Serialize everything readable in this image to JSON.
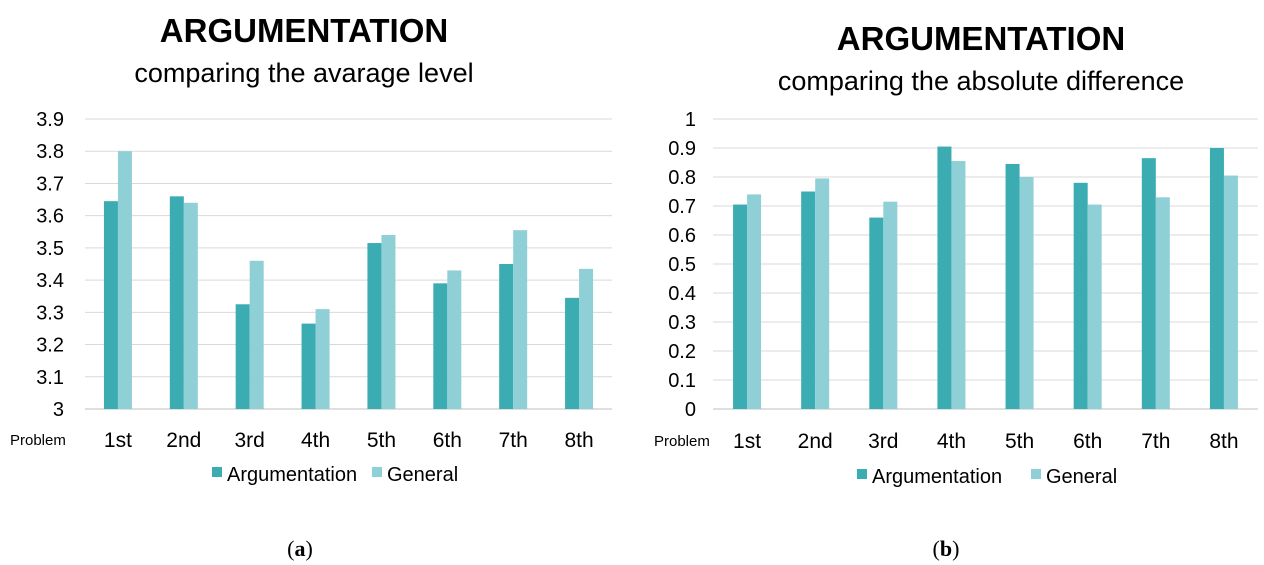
{
  "colors": {
    "argumentation": "#3aacb2",
    "general": "#8fd0d6"
  },
  "charts": [
    {
      "panel_label": "a",
      "category_prefix": "Problem",
      "chart_data": {
        "type": "bar",
        "title": "ARGUMENTATION",
        "subtitle": "comparing the avarage level",
        "categories": [
          "1st",
          "2nd",
          "3rd",
          "4th",
          "5th",
          "6th",
          "7th",
          "8th"
        ],
        "series": [
          {
            "name": "Argumentation",
            "values": [
              3.645,
              3.66,
              3.325,
              3.265,
              3.515,
              3.39,
              3.45,
              3.345
            ]
          },
          {
            "name": "General",
            "values": [
              3.8,
              3.64,
              3.46,
              3.31,
              3.54,
              3.43,
              3.555,
              3.435
            ]
          }
        ],
        "ylim": [
          3,
          3.9
        ],
        "yticks": [
          "3",
          "3.1",
          "3.2",
          "3.3",
          "3.4",
          "3.5",
          "3.6",
          "3.7",
          "3.8",
          "3.9"
        ],
        "grid": true,
        "legend_position": "bottom"
      }
    },
    {
      "panel_label": "b",
      "category_prefix": "Problem",
      "chart_data": {
        "type": "bar",
        "title": "ARGUMENTATION",
        "subtitle": "comparing the absolute difference",
        "categories": [
          "1st",
          "2nd",
          "3rd",
          "4th",
          "5th",
          "6th",
          "7th",
          "8th"
        ],
        "series": [
          {
            "name": "Argumentation",
            "values": [
              0.705,
              0.75,
              0.66,
              0.905,
              0.845,
              0.78,
              0.865,
              0.9
            ]
          },
          {
            "name": "General",
            "values": [
              0.74,
              0.795,
              0.715,
              0.855,
              0.8,
              0.705,
              0.73,
              0.805
            ]
          }
        ],
        "ylim": [
          0,
          1
        ],
        "yticks": [
          "0",
          "0.1",
          "0.2",
          "0.3",
          "0.4",
          "0.5",
          "0.6",
          "0.7",
          "0.8",
          "0.9",
          "1"
        ],
        "grid": true,
        "legend_position": "bottom"
      }
    }
  ]
}
